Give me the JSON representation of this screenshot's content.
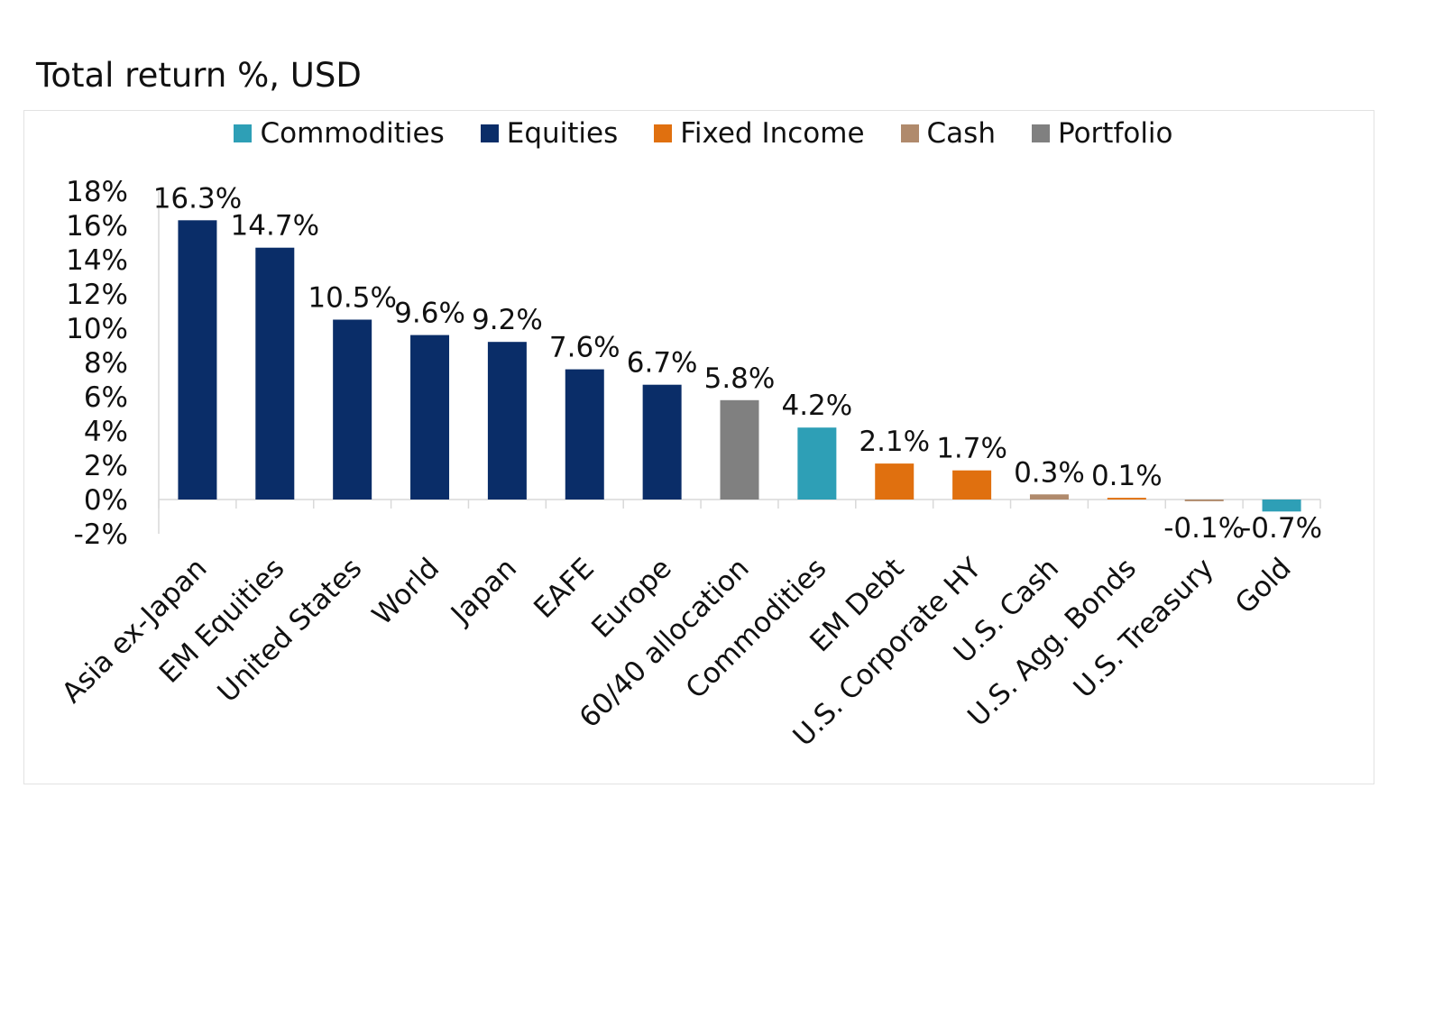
{
  "title": "Total return %, USD",
  "colors": {
    "Commodities": "#2e9fb6",
    "Equities": "#0a2d68",
    "Fixed Income": "#e0700f",
    "Cash": "#b08a6c",
    "Portfolio": "#808080"
  },
  "legend": [
    {
      "label": "Commodities",
      "color": "#2e9fb6"
    },
    {
      "label": "Equities",
      "color": "#0a2d68"
    },
    {
      "label": "Fixed Income",
      "color": "#e0700f"
    },
    {
      "label": "Cash",
      "color": "#b08a6c"
    },
    {
      "label": "Portfolio",
      "color": "#808080"
    }
  ],
  "chart_data": {
    "type": "bar",
    "title": "Total return %, USD",
    "xlabel": "",
    "ylabel": "",
    "ylim": [
      -2,
      18
    ],
    "yticks": [
      18,
      16,
      14,
      12,
      10,
      8,
      6,
      4,
      2,
      0,
      -2
    ],
    "ytick_labels": [
      "18%",
      "16%",
      "14%",
      "12%",
      "10%",
      "8%",
      "6%",
      "4%",
      "2%",
      "0%",
      "-2%"
    ],
    "categories": [
      "Asia ex-Japan",
      "EM Equities",
      "United States",
      "World",
      "Japan",
      "EAFE",
      "Europe",
      "60/40 allocation",
      "Commodities",
      "EM Debt",
      "U.S. Corporate HY",
      "U.S. Cash",
      "U.S. Agg. Bonds",
      "U.S. Treasury",
      "Gold"
    ],
    "values": [
      16.3,
      14.7,
      10.5,
      9.6,
      9.2,
      7.6,
      6.7,
      5.8,
      4.2,
      2.1,
      1.7,
      0.3,
      0.1,
      -0.1,
      -0.7
    ],
    "value_labels": [
      "16.3%",
      "14.7%",
      "10.5%",
      "9.6%",
      "9.2%",
      "7.6%",
      "6.7%",
      "5.8%",
      "4.2%",
      "2.1%",
      "1.7%",
      "0.3%",
      "0.1%",
      "-0.1%",
      "-0.7%"
    ],
    "groups": [
      "Equities",
      "Equities",
      "Equities",
      "Equities",
      "Equities",
      "Equities",
      "Equities",
      "Portfolio",
      "Commodities",
      "Fixed Income",
      "Fixed Income",
      "Cash",
      "Fixed Income",
      "Cash",
      "Commodities"
    ],
    "legend_position": "top",
    "grid": false
  }
}
